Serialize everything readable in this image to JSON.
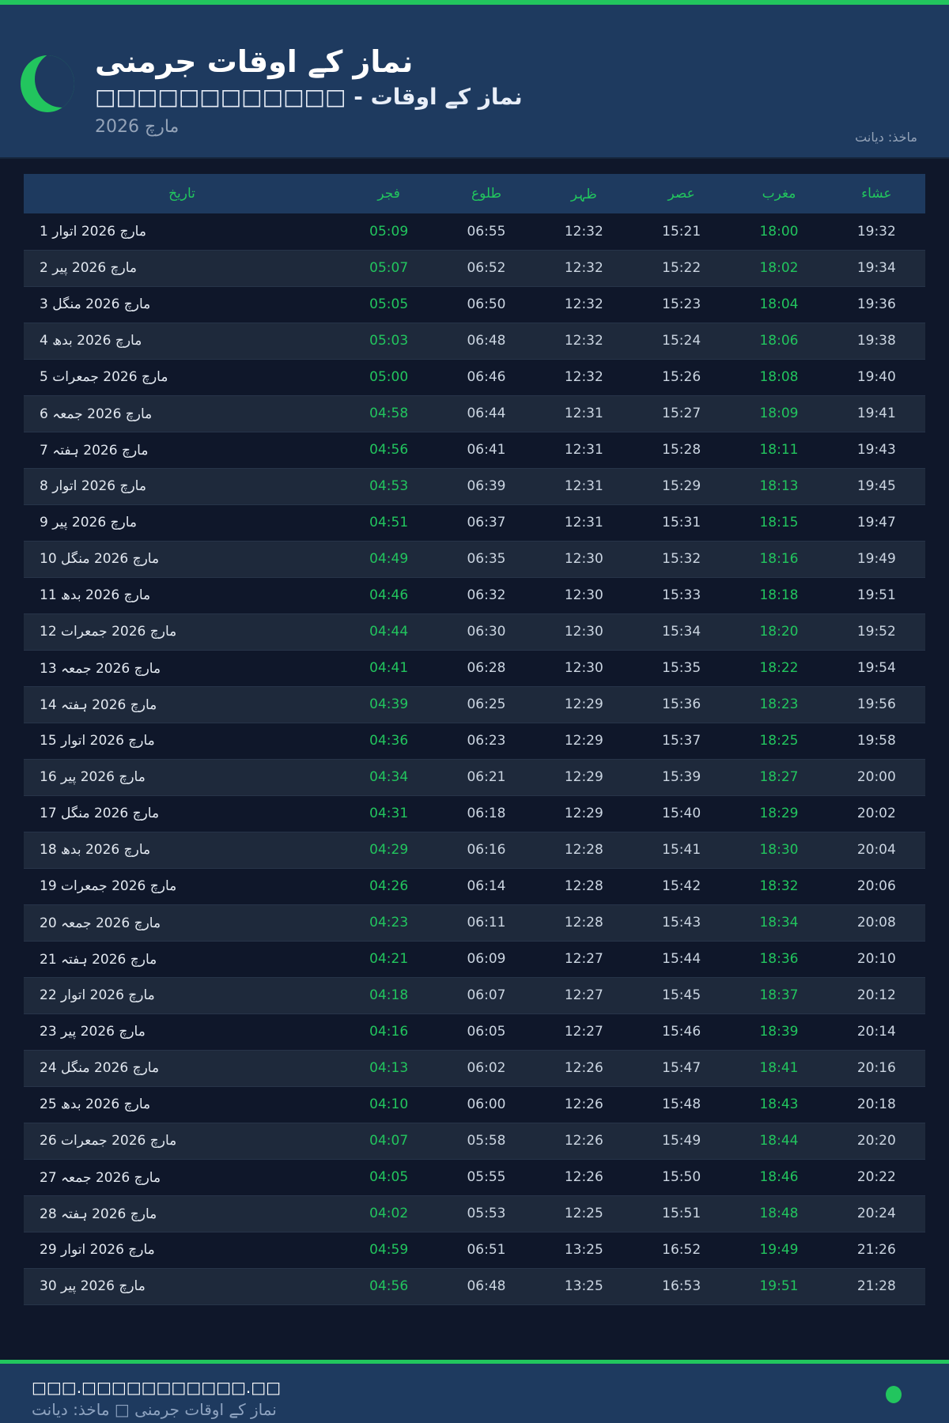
{
  "header": {
    "title": "نماز کے اوقات جرمنی",
    "subtitle": "□□□□□□□□□□□□ - نماز کے اوقات",
    "month": "مارچ 2026",
    "source": "ماخذ: دیانت",
    "icon": "crescent-moon-icon"
  },
  "table": {
    "columns": [
      "تاریخ",
      "فجر",
      "طلوع",
      "ظہر",
      "عصر",
      "مغرب",
      "عشاء"
    ],
    "rows": [
      [
        "1 مارچ 2026 اتوار",
        "05:09",
        "06:55",
        "12:32",
        "15:21",
        "18:00",
        "19:32"
      ],
      [
        "2 مارچ 2026 پیر",
        "05:07",
        "06:52",
        "12:32",
        "15:22",
        "18:02",
        "19:34"
      ],
      [
        "3 مارچ 2026 منگل",
        "05:05",
        "06:50",
        "12:32",
        "15:23",
        "18:04",
        "19:36"
      ],
      [
        "4 مارچ 2026 بدھ",
        "05:03",
        "06:48",
        "12:32",
        "15:24",
        "18:06",
        "19:38"
      ],
      [
        "5 مارچ 2026 جمعرات",
        "05:00",
        "06:46",
        "12:32",
        "15:26",
        "18:08",
        "19:40"
      ],
      [
        "6 مارچ 2026 جمعہ",
        "04:58",
        "06:44",
        "12:31",
        "15:27",
        "18:09",
        "19:41"
      ],
      [
        "7 مارچ 2026 ہفتہ",
        "04:56",
        "06:41",
        "12:31",
        "15:28",
        "18:11",
        "19:43"
      ],
      [
        "8 مارچ 2026 اتوار",
        "04:53",
        "06:39",
        "12:31",
        "15:29",
        "18:13",
        "19:45"
      ],
      [
        "9 مارچ 2026 پیر",
        "04:51",
        "06:37",
        "12:31",
        "15:31",
        "18:15",
        "19:47"
      ],
      [
        "10 مارچ 2026 منگل",
        "04:49",
        "06:35",
        "12:30",
        "15:32",
        "18:16",
        "19:49"
      ],
      [
        "11 مارچ 2026 بدھ",
        "04:46",
        "06:32",
        "12:30",
        "15:33",
        "18:18",
        "19:51"
      ],
      [
        "12 مارچ 2026 جمعرات",
        "04:44",
        "06:30",
        "12:30",
        "15:34",
        "18:20",
        "19:52"
      ],
      [
        "13 مارچ 2026 جمعہ",
        "04:41",
        "06:28",
        "12:30",
        "15:35",
        "18:22",
        "19:54"
      ],
      [
        "14 مارچ 2026 ہفتہ",
        "04:39",
        "06:25",
        "12:29",
        "15:36",
        "18:23",
        "19:56"
      ],
      [
        "15 مارچ 2026 اتوار",
        "04:36",
        "06:23",
        "12:29",
        "15:37",
        "18:25",
        "19:58"
      ],
      [
        "16 مارچ 2026 پیر",
        "04:34",
        "06:21",
        "12:29",
        "15:39",
        "18:27",
        "20:00"
      ],
      [
        "17 مارچ 2026 منگل",
        "04:31",
        "06:18",
        "12:29",
        "15:40",
        "18:29",
        "20:02"
      ],
      [
        "18 مارچ 2026 بدھ",
        "04:29",
        "06:16",
        "12:28",
        "15:41",
        "18:30",
        "20:04"
      ],
      [
        "19 مارچ 2026 جمعرات",
        "04:26",
        "06:14",
        "12:28",
        "15:42",
        "18:32",
        "20:06"
      ],
      [
        "20 مارچ 2026 جمعہ",
        "04:23",
        "06:11",
        "12:28",
        "15:43",
        "18:34",
        "20:08"
      ],
      [
        "21 مارچ 2026 ہفتہ",
        "04:21",
        "06:09",
        "12:27",
        "15:44",
        "18:36",
        "20:10"
      ],
      [
        "22 مارچ 2026 اتوار",
        "04:18",
        "06:07",
        "12:27",
        "15:45",
        "18:37",
        "20:12"
      ],
      [
        "23 مارچ 2026 پیر",
        "04:16",
        "06:05",
        "12:27",
        "15:46",
        "18:39",
        "20:14"
      ],
      [
        "24 مارچ 2026 منگل",
        "04:13",
        "06:02",
        "12:26",
        "15:47",
        "18:41",
        "20:16"
      ],
      [
        "25 مارچ 2026 بدھ",
        "04:10",
        "06:00",
        "12:26",
        "15:48",
        "18:43",
        "20:18"
      ],
      [
        "26 مارچ 2026 جمعرات",
        "04:07",
        "05:58",
        "12:26",
        "15:49",
        "18:44",
        "20:20"
      ],
      [
        "27 مارچ 2026 جمعہ",
        "04:05",
        "05:55",
        "12:26",
        "15:50",
        "18:46",
        "20:22"
      ],
      [
        "28 مارچ 2026 ہفتہ",
        "04:02",
        "05:53",
        "12:25",
        "15:51",
        "18:48",
        "20:24"
      ],
      [
        "29 مارچ 2026 اتوار",
        "04:59",
        "06:51",
        "13:25",
        "16:52",
        "19:49",
        "21:26"
      ],
      [
        "30 مارچ 2026 پیر",
        "04:56",
        "06:48",
        "13:25",
        "16:53",
        "19:51",
        "21:28"
      ]
    ]
  },
  "footer": {
    "site": "□□□.□□□□□□□□□□□.□□",
    "note": "نماز کے اوقات جرمنی □ ماخذ: دیانت"
  },
  "colors": {
    "accent": "#22c55e",
    "header_bg": "#1e3a5f",
    "page_bg": "#0f172a"
  }
}
